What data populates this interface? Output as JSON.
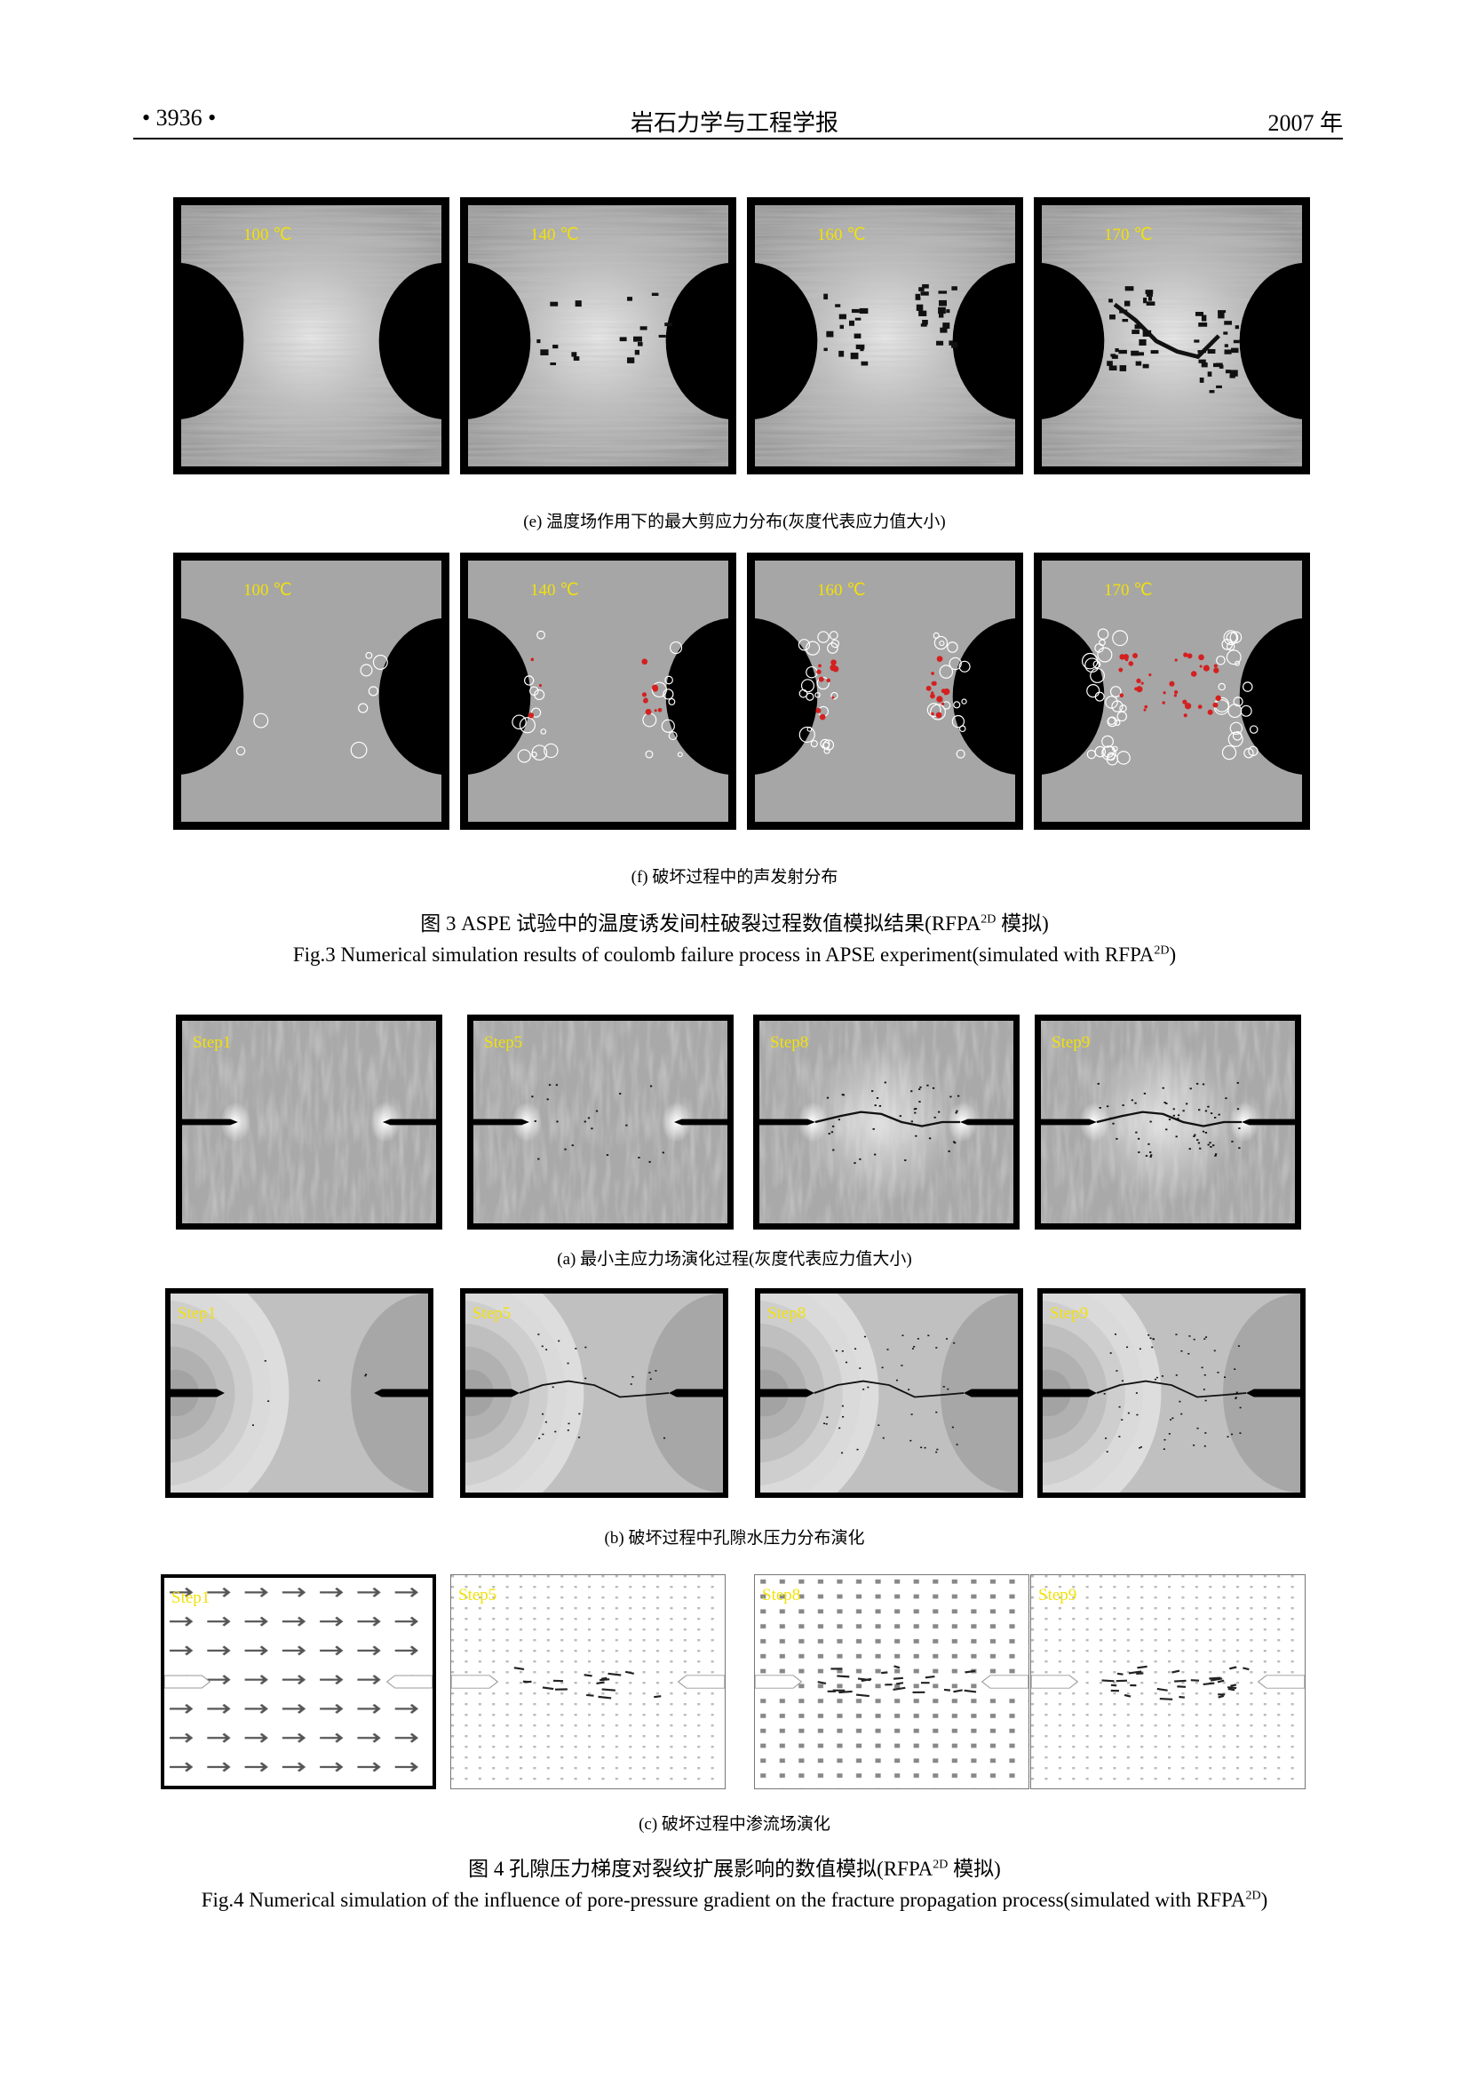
{
  "header": {
    "page_number": "• 3936 •",
    "journal": "岩石力学与工程学报",
    "year": "2007 年"
  },
  "fig3": {
    "row_e": {
      "labels": [
        "100 ℃",
        "140 ℃",
        "160 ℃",
        "170 ℃"
      ],
      "caption": "(e)  温度场作用下的最大剪应力分布(灰度代表应力值大小)"
    },
    "row_f": {
      "labels": [
        "100 ℃",
        "140 ℃",
        "160 ℃",
        "170 ℃"
      ],
      "caption": "(f)  破坏过程中的声发射分布"
    },
    "caption_cn_prefix": "图 3    ASPE 试验中的温度诱发间柱破裂过程数值模拟结果(RFPA",
    "caption_cn_sup": "2D",
    "caption_cn_suffix": " 模拟)",
    "caption_en_prefix": "Fig.3    Numerical simulation results of coulomb failure process in APSE experiment(simulated with RFPA",
    "caption_en_sup": "2D",
    "caption_en_suffix": ")"
  },
  "fig4": {
    "row_a": {
      "labels": [
        "Step1",
        "Step5",
        "Step8",
        "Step9"
      ],
      "caption": "(a)  最小主应力场演化过程(灰度代表应力值大小)"
    },
    "row_b": {
      "labels": [
        "Step1",
        "Step5",
        "Step8",
        "Step9"
      ],
      "caption": "(b)  破坏过程中孔隙水压力分布演化"
    },
    "row_c": {
      "labels": [
        "Step1",
        "Step5",
        "Step8",
        "Step9"
      ],
      "caption": "(c)  破坏过程中渗流场演化"
    },
    "caption_cn_prefix": "图 4    孔隙压力梯度对裂纹扩展影响的数值模拟(RFPA",
    "caption_cn_sup": "2D",
    "caption_cn_suffix": " 模拟)",
    "caption_en_prefix": "Fig.4    Numerical simulation of the influence of pore-pressure gradient on the fracture propagation process(simulated with RFPA",
    "caption_en_sup": "2D",
    "caption_en_suffix": ")"
  },
  "colors": {
    "label_yellow": "#f2e10a",
    "ae_red": "#d42020",
    "frame": "#000000"
  }
}
